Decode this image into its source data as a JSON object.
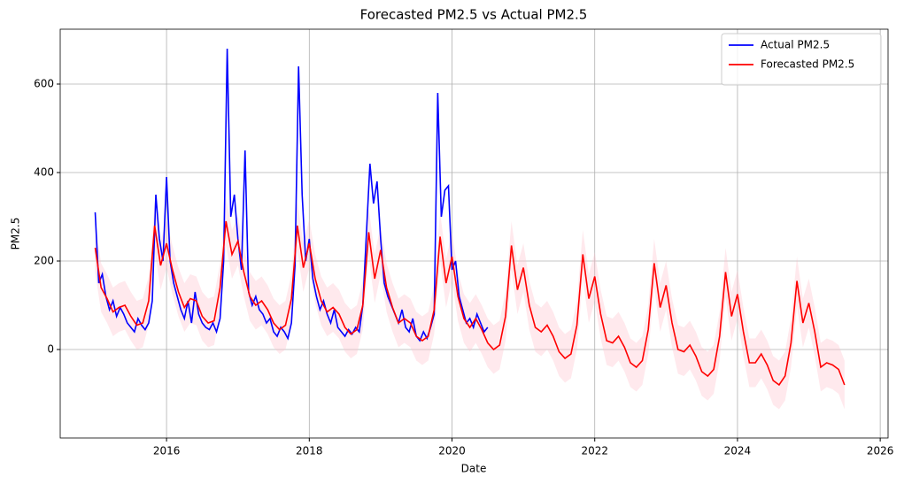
{
  "chart_data": {
    "type": "line",
    "title": "Forecasted PM2.5 vs Actual PM2.5",
    "x_label": "Date",
    "y_label": "PM2.5",
    "xlim": [
      2014.51,
      2026.11
    ],
    "xticks": [
      2016,
      2018,
      2020,
      2022,
      2024,
      2026
    ],
    "ylim": [
      -200,
      724
    ],
    "yticks": [
      0,
      200,
      400,
      600
    ],
    "grid": true,
    "legend": "upper right",
    "series": [
      {
        "name": "Actual PM2.5",
        "color": "#0000ff",
        "x": [
          2015,
          2015.05,
          2015.1,
          2015.15,
          2015.2,
          2015.25,
          2015.3,
          2015.35,
          2015.4,
          2015.45,
          2015.5,
          2015.55,
          2015.6,
          2015.65,
          2015.7,
          2015.75,
          2015.8,
          2015.85,
          2015.9,
          2015.95,
          2016,
          2016.05,
          2016.1,
          2016.15,
          2016.2,
          2016.25,
          2016.3,
          2016.35,
          2016.4,
          2016.45,
          2016.5,
          2016.55,
          2016.6,
          2016.65,
          2016.7,
          2016.75,
          2016.8,
          2016.85,
          2016.9,
          2016.95,
          2017,
          2017.05,
          2017.1,
          2017.15,
          2017.2,
          2017.25,
          2017.3,
          2017.35,
          2017.4,
          2017.45,
          2017.5,
          2017.55,
          2017.6,
          2017.65,
          2017.7,
          2017.75,
          2017.8,
          2017.85,
          2017.9,
          2017.95,
          2018,
          2018.05,
          2018.1,
          2018.15,
          2018.2,
          2018.25,
          2018.3,
          2018.35,
          2018.4,
          2018.45,
          2018.5,
          2018.55,
          2018.6,
          2018.65,
          2018.7,
          2018.75,
          2018.8,
          2018.85,
          2018.9,
          2018.95,
          2019,
          2019.05,
          2019.1,
          2019.15,
          2019.2,
          2019.25,
          2019.3,
          2019.35,
          2019.4,
          2019.45,
          2019.5,
          2019.55,
          2019.6,
          2019.65,
          2019.7,
          2019.75,
          2019.8,
          2019.85,
          2019.9,
          2019.95,
          2020,
          2020.05,
          2020.1,
          2020.15,
          2020.2,
          2020.25,
          2020.3,
          2020.35,
          2020.4,
          2020.45,
          2020.5
        ],
        "values": [
          310,
          150,
          170,
          120,
          90,
          110,
          75,
          95,
          80,
          60,
          50,
          40,
          70,
          55,
          45,
          60,
          110,
          350,
          250,
          200,
          390,
          200,
          150,
          120,
          90,
          70,
          110,
          60,
          130,
          80,
          60,
          50,
          45,
          60,
          40,
          70,
          200,
          680,
          300,
          350,
          250,
          180,
          450,
          130,
          100,
          120,
          90,
          80,
          60,
          70,
          40,
          30,
          50,
          40,
          25,
          60,
          190,
          640,
          350,
          200,
          250,
          160,
          120,
          90,
          110,
          80,
          60,
          90,
          50,
          40,
          30,
          45,
          35,
          50,
          40,
          100,
          260,
          420,
          330,
          380,
          250,
          150,
          120,
          100,
          80,
          60,
          90,
          50,
          40,
          70,
          30,
          20,
          40,
          25,
          50,
          80,
          580,
          300,
          360,
          370,
          180,
          200,
          120,
          90,
          60,
          70,
          50,
          80,
          60,
          40,
          50
        ]
      },
      {
        "name": "Forecasted PM2.5",
        "color": "#ff0000",
        "x": [
          2015,
          2015.083,
          2015.167,
          2015.25,
          2015.333,
          2015.417,
          2015.5,
          2015.583,
          2015.667,
          2015.75,
          2015.833,
          2015.917,
          2016,
          2016.083,
          2016.167,
          2016.25,
          2016.333,
          2016.417,
          2016.5,
          2016.583,
          2016.667,
          2016.75,
          2016.833,
          2016.917,
          2017,
          2017.083,
          2017.167,
          2017.25,
          2017.333,
          2017.417,
          2017.5,
          2017.583,
          2017.667,
          2017.75,
          2017.833,
          2017.917,
          2018,
          2018.083,
          2018.167,
          2018.25,
          2018.333,
          2018.417,
          2018.5,
          2018.583,
          2018.667,
          2018.75,
          2018.833,
          2018.917,
          2019,
          2019.083,
          2019.167,
          2019.25,
          2019.333,
          2019.417,
          2019.5,
          2019.583,
          2019.667,
          2019.75,
          2019.833,
          2019.917,
          2020,
          2020.083,
          2020.167,
          2020.25,
          2020.333,
          2020.417,
          2020.5,
          2020.583,
          2020.667,
          2020.75,
          2020.833,
          2020.917,
          2021,
          2021.083,
          2021.167,
          2021.25,
          2021.333,
          2021.417,
          2021.5,
          2021.583,
          2021.667,
          2021.75,
          2021.833,
          2021.917,
          2022,
          2022.083,
          2022.167,
          2022.25,
          2022.333,
          2022.417,
          2022.5,
          2022.583,
          2022.667,
          2022.75,
          2022.833,
          2022.917,
          2023,
          2023.083,
          2023.167,
          2023.25,
          2023.333,
          2023.417,
          2023.5,
          2023.583,
          2023.667,
          2023.75,
          2023.833,
          2023.917,
          2024,
          2024.083,
          2024.167,
          2024.25,
          2024.333,
          2024.417,
          2024.5,
          2024.583,
          2024.667,
          2024.75,
          2024.833,
          2024.917,
          2025,
          2025.083,
          2025.167,
          2025.25,
          2025.333,
          2025.417,
          2025.5
        ],
        "values": [
          230,
          140,
          115,
          85,
          95,
          100,
          75,
          55,
          60,
          110,
          280,
          190,
          240,
          180,
          130,
          95,
          115,
          110,
          75,
          60,
          65,
          140,
          290,
          215,
          245,
          175,
          120,
          100,
          110,
          90,
          60,
          45,
          55,
          115,
          280,
          185,
          240,
          160,
          110,
          85,
          95,
          80,
          50,
          35,
          45,
          100,
          265,
          160,
          225,
          140,
          95,
          60,
          70,
          60,
          30,
          20,
          30,
          90,
          255,
          150,
          210,
          120,
          70,
          50,
          70,
          45,
          15,
          0,
          10,
          75,
          235,
          135,
          185,
          100,
          50,
          40,
          55,
          30,
          -5,
          -20,
          -10,
          55,
          215,
          115,
          165,
          80,
          20,
          15,
          30,
          5,
          -30,
          -40,
          -25,
          45,
          195,
          95,
          145,
          60,
          0,
          -5,
          10,
          -15,
          -50,
          -60,
          -45,
          30,
          175,
          75,
          125,
          40,
          -30,
          -30,
          -10,
          -35,
          -70,
          -80,
          -60,
          15,
          155,
          60,
          105,
          40,
          -40,
          -30,
          -35,
          -45,
          -80
        ]
      }
    ],
    "band": {
      "color": "#ffc0cb",
      "upper": [
        285,
        195,
        170,
        140,
        150,
        155,
        130,
        110,
        115,
        165,
        335,
        245,
        295,
        235,
        185,
        150,
        170,
        165,
        130,
        115,
        120,
        195,
        345,
        270,
        300,
        230,
        175,
        155,
        165,
        145,
        115,
        100,
        110,
        170,
        335,
        240,
        295,
        215,
        165,
        140,
        150,
        135,
        105,
        90,
        100,
        155,
        320,
        215,
        280,
        195,
        150,
        115,
        125,
        115,
        85,
        75,
        85,
        145,
        310,
        205,
        265,
        175,
        125,
        105,
        125,
        100,
        70,
        55,
        65,
        130,
        290,
        190,
        240,
        155,
        105,
        95,
        110,
        85,
        50,
        35,
        45,
        110,
        270,
        170,
        220,
        135,
        75,
        70,
        85,
        60,
        25,
        15,
        30,
        100,
        250,
        150,
        200,
        115,
        55,
        50,
        65,
        40,
        5,
        -5,
        10,
        85,
        230,
        130,
        180,
        95,
        25,
        25,
        45,
        20,
        -15,
        -25,
        -5,
        70,
        210,
        115,
        160,
        95,
        15,
        25,
        20,
        10,
        -25
      ],
      "lower": [
        175,
        85,
        60,
        30,
        40,
        45,
        20,
        0,
        5,
        55,
        225,
        135,
        185,
        125,
        75,
        40,
        60,
        55,
        20,
        5,
        10,
        85,
        235,
        160,
        190,
        120,
        65,
        45,
        55,
        35,
        5,
        -10,
        0,
        60,
        225,
        130,
        185,
        105,
        55,
        30,
        40,
        25,
        -5,
        -20,
        -10,
        45,
        210,
        105,
        170,
        85,
        40,
        5,
        15,
        5,
        -25,
        -35,
        -25,
        35,
        200,
        95,
        155,
        65,
        15,
        -5,
        15,
        -10,
        -40,
        -55,
        -45,
        20,
        180,
        80,
        130,
        45,
        -5,
        -15,
        0,
        -25,
        -60,
        -75,
        -65,
        0,
        160,
        60,
        110,
        25,
        -35,
        -40,
        -25,
        -50,
        -85,
        -95,
        -80,
        -10,
        140,
        40,
        90,
        5,
        -55,
        -60,
        -45,
        -70,
        -105,
        -115,
        -100,
        -25,
        120,
        20,
        70,
        -15,
        -85,
        -85,
        -65,
        -90,
        -125,
        -135,
        -115,
        -40,
        100,
        5,
        50,
        -15,
        -95,
        -85,
        -90,
        -100,
        -135
      ]
    }
  }
}
